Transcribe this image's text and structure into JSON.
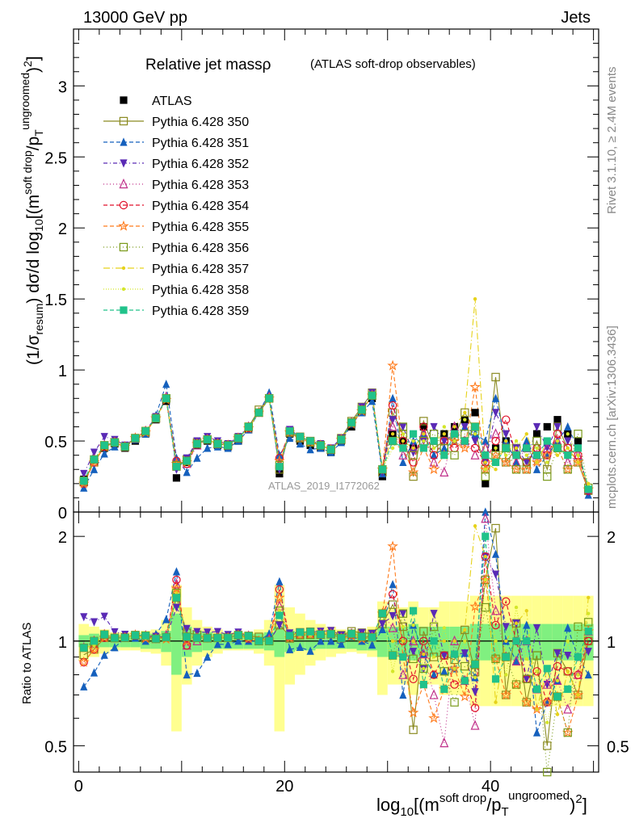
{
  "header": {
    "left": "13000 GeV pp",
    "right": "Jets"
  },
  "side_labels": {
    "version": "Rivet 3.1.10, ≥ 2.4M events",
    "source": "mcplots.cern.ch [arXiv:1306.3436]"
  },
  "watermark": "ATLAS_2019_I1772062",
  "colors": {
    "ATLAS": "#000000",
    "350": "#8b8b22",
    "351": "#1560bd",
    "352": "#5a2ab5",
    "353": "#c0308a",
    "354": "#e0102a",
    "355": "#ff7a1a",
    "356": "#7a9a1a",
    "357": "#e6d21a",
    "358": "#d4e62a",
    "359": "#20c28a",
    "band_inner": "#80f080",
    "band_outer": "#ffff90"
  },
  "chart_data": [
    {
      "type": "line",
      "title": "Relative jet massρ",
      "subtitle": "(ATLAS soft-drop observables)",
      "ylabel": "(1/σresum) dσ/d log10[(m soft drop/pT ungroomed)2]",
      "ylim": [
        0,
        3.4
      ],
      "yticks": [
        "0",
        "0.5",
        "1",
        "1.5",
        "2",
        "2.5",
        "3"
      ],
      "x": [
        0.5,
        1.5,
        2.5,
        3.5,
        4.5,
        5.5,
        6.5,
        7.5,
        8.5,
        9.5,
        10.5,
        11.5,
        12.5,
        13.5,
        14.5,
        15.5,
        16.5,
        17.5,
        18.5,
        19.5,
        20.5,
        21.5,
        22.5,
        23.5,
        24.5,
        25.5,
        26.5,
        27.5,
        28.5,
        29.5,
        30.5,
        31.5,
        32.5,
        33.5,
        34.5,
        35.5,
        36.5,
        37.5,
        38.5,
        39.5,
        40.5,
        41.5,
        42.5,
        43.5,
        44.5,
        45.5,
        46.5,
        47.5,
        48.5,
        49.5
      ],
      "legend": [
        "ATLAS",
        "Pythia 6.428 350",
        "Pythia 6.428 351",
        "Pythia 6.428 352",
        "Pythia 6.428 353",
        "Pythia 6.428 354",
        "Pythia 6.428 355",
        "Pythia 6.428 356",
        "Pythia 6.428 357",
        "Pythia 6.428 358",
        "Pythia 6.428 359"
      ],
      "legend_position": "top-left",
      "series": [
        {
          "name": "ATLAS",
          "values": [
            0.23,
            0.37,
            0.45,
            0.48,
            0.45,
            0.5,
            0.55,
            0.65,
            0.78,
            0.24,
            0.35,
            0.47,
            0.5,
            0.47,
            0.46,
            0.5,
            0.58,
            0.7,
            0.8,
            0.27,
            0.55,
            0.5,
            0.47,
            0.45,
            0.42,
            0.5,
            0.6,
            0.7,
            0.8,
            0.25,
            0.55,
            0.5,
            0.45,
            0.6,
            0.5,
            0.55,
            0.6,
            0.65,
            0.7,
            0.2,
            0.45,
            0.5,
            0.4,
            0.45,
            0.55,
            0.6,
            0.65,
            0.55,
            0.5,
            0.15
          ]
        },
        {
          "name": "Pythia 6.428 350",
          "values": [
            0.21,
            0.35,
            0.46,
            0.49,
            0.46,
            0.52,
            0.56,
            0.66,
            0.8,
            0.32,
            0.37,
            0.49,
            0.51,
            0.48,
            0.47,
            0.52,
            0.6,
            0.72,
            0.8,
            0.3,
            0.57,
            0.53,
            0.5,
            0.47,
            0.44,
            0.52,
            0.64,
            0.74,
            0.84,
            0.28,
            0.7,
            0.55,
            0.25,
            0.64,
            0.45,
            0.5,
            0.53,
            0.7,
            0.57,
            0.3,
            0.95,
            0.35,
            0.45,
            0.3,
            0.5,
            0.3,
            0.6,
            0.45,
            0.35,
            0.15
          ]
        },
        {
          "name": "Pythia 6.428 351",
          "values": [
            0.17,
            0.3,
            0.41,
            0.46,
            0.46,
            0.51,
            0.55,
            0.68,
            0.9,
            0.38,
            0.28,
            0.38,
            0.45,
            0.46,
            0.45,
            0.5,
            0.58,
            0.7,
            0.84,
            0.4,
            0.52,
            0.48,
            0.44,
            0.45,
            0.42,
            0.49,
            0.62,
            0.7,
            0.78,
            0.27,
            0.8,
            0.35,
            0.5,
            0.55,
            0.4,
            0.45,
            0.5,
            0.6,
            0.55,
            0.5,
            0.8,
            0.5,
            0.35,
            0.5,
            0.3,
            0.4,
            0.5,
            0.6,
            0.45,
            0.12
          ]
        },
        {
          "name": "Pythia 6.428 352",
          "values": [
            0.27,
            0.42,
            0.53,
            0.51,
            0.47,
            0.52,
            0.57,
            0.67,
            0.8,
            0.3,
            0.38,
            0.5,
            0.53,
            0.5,
            0.48,
            0.53,
            0.6,
            0.7,
            0.8,
            0.3,
            0.58,
            0.53,
            0.5,
            0.48,
            0.45,
            0.52,
            0.63,
            0.74,
            0.84,
            0.28,
            0.65,
            0.6,
            0.42,
            0.5,
            0.6,
            0.5,
            0.55,
            0.6,
            0.5,
            0.35,
            0.7,
            0.55,
            0.45,
            0.35,
            0.6,
            0.45,
            0.6,
            0.5,
            0.45,
            0.14
          ]
        },
        {
          "name": "Pythia 6.428 353",
          "values": [
            0.22,
            0.37,
            0.47,
            0.49,
            0.46,
            0.52,
            0.57,
            0.66,
            0.81,
            0.35,
            0.34,
            0.47,
            0.51,
            0.48,
            0.47,
            0.52,
            0.6,
            0.7,
            0.81,
            0.34,
            0.56,
            0.52,
            0.49,
            0.47,
            0.44,
            0.51,
            0.63,
            0.72,
            0.82,
            0.3,
            0.6,
            0.4,
            0.45,
            0.55,
            0.35,
            0.28,
            0.6,
            0.5,
            0.4,
            0.45,
            0.55,
            0.45,
            0.35,
            0.45,
            0.4,
            0.45,
            0.5,
            0.35,
            0.4,
            0.16
          ]
        },
        {
          "name": "Pythia 6.428 354",
          "values": [
            0.2,
            0.35,
            0.46,
            0.49,
            0.46,
            0.52,
            0.57,
            0.66,
            0.8,
            0.36,
            0.34,
            0.48,
            0.51,
            0.48,
            0.47,
            0.52,
            0.59,
            0.7,
            0.8,
            0.38,
            0.56,
            0.52,
            0.49,
            0.47,
            0.44,
            0.51,
            0.63,
            0.72,
            0.82,
            0.3,
            0.75,
            0.5,
            0.35,
            0.6,
            0.4,
            0.5,
            0.45,
            0.5,
            0.45,
            0.35,
            0.5,
            0.65,
            0.4,
            0.35,
            0.45,
            0.4,
            0.55,
            0.45,
            0.4,
            0.15
          ]
        },
        {
          "name": "Pythia 6.428 355",
          "values": [
            0.2,
            0.35,
            0.46,
            0.49,
            0.46,
            0.52,
            0.56,
            0.66,
            0.79,
            0.34,
            0.35,
            0.48,
            0.51,
            0.48,
            0.47,
            0.52,
            0.59,
            0.7,
            0.8,
            0.36,
            0.56,
            0.52,
            0.49,
            0.47,
            0.44,
            0.51,
            0.62,
            0.71,
            0.82,
            0.3,
            1.03,
            0.45,
            0.28,
            0.45,
            0.3,
            0.4,
            0.5,
            0.45,
            0.88,
            0.3,
            0.4,
            0.35,
            0.3,
            0.3,
            0.35,
            0.4,
            0.45,
            0.3,
            0.35,
            0.16
          ]
        },
        {
          "name": "Pythia 6.428 356",
          "values": [
            0.22,
            0.37,
            0.47,
            0.49,
            0.46,
            0.52,
            0.57,
            0.66,
            0.8,
            0.33,
            0.36,
            0.48,
            0.51,
            0.48,
            0.47,
            0.52,
            0.6,
            0.7,
            0.8,
            0.33,
            0.56,
            0.52,
            0.49,
            0.47,
            0.44,
            0.51,
            0.63,
            0.72,
            0.82,
            0.3,
            0.5,
            0.6,
            0.4,
            0.5,
            0.55,
            0.45,
            0.4,
            0.55,
            0.6,
            0.25,
            0.4,
            0.45,
            0.3,
            0.35,
            0.5,
            0.25,
            0.45,
            0.3,
            0.55,
            0.17
          ]
        },
        {
          "name": "Pythia 6.428 357",
          "values": [
            0.22,
            0.36,
            0.47,
            0.49,
            0.46,
            0.52,
            0.56,
            0.66,
            0.8,
            0.33,
            0.36,
            0.48,
            0.51,
            0.48,
            0.47,
            0.52,
            0.59,
            0.7,
            0.8,
            0.33,
            0.57,
            0.53,
            0.49,
            0.47,
            0.44,
            0.51,
            0.63,
            0.72,
            0.82,
            0.3,
            0.55,
            0.5,
            0.45,
            0.55,
            0.5,
            0.55,
            0.6,
            0.7,
            1.5,
            0.35,
            0.3,
            0.5,
            0.45,
            0.55,
            0.35,
            0.5,
            0.4,
            0.45,
            0.35,
            0.2
          ]
        },
        {
          "name": "Pythia 6.428 358",
          "values": [
            0.22,
            0.36,
            0.47,
            0.49,
            0.46,
            0.52,
            0.56,
            0.66,
            0.8,
            0.32,
            0.36,
            0.48,
            0.51,
            0.48,
            0.47,
            0.52,
            0.59,
            0.7,
            0.8,
            0.33,
            0.57,
            0.52,
            0.49,
            0.47,
            0.44,
            0.51,
            0.63,
            0.72,
            0.82,
            0.3,
            0.45,
            0.55,
            0.5,
            0.5,
            0.45,
            0.6,
            0.5,
            0.65,
            0.55,
            0.3,
            0.45,
            0.4,
            0.5,
            0.4,
            0.45,
            0.35,
            0.5,
            0.55,
            0.4,
            0.18
          ]
        },
        {
          "name": "Pythia 6.428 359",
          "values": [
            0.22,
            0.37,
            0.47,
            0.49,
            0.46,
            0.52,
            0.57,
            0.66,
            0.8,
            0.32,
            0.36,
            0.48,
            0.51,
            0.48,
            0.47,
            0.52,
            0.6,
            0.7,
            0.8,
            0.32,
            0.57,
            0.53,
            0.5,
            0.47,
            0.44,
            0.51,
            0.63,
            0.72,
            0.82,
            0.3,
            0.5,
            0.45,
            0.55,
            0.45,
            0.5,
            0.4,
            0.55,
            0.5,
            0.6,
            0.4,
            0.35,
            0.45,
            0.4,
            0.45,
            0.4,
            0.5,
            0.45,
            0.4,
            0.45,
            0.16
          ]
        }
      ]
    },
    {
      "type": "line",
      "ylabel": "Ratio to ATLAS",
      "xlabel": "log10[(m soft drop/pT ungroomed)2]",
      "xlim": [
        -0.5,
        50.5
      ],
      "xticks": [
        "0",
        "20",
        "40"
      ],
      "yscale": "log",
      "ylim": [
        0.42,
        2.35
      ],
      "yticks": [
        "0.5",
        "1",
        "2"
      ],
      "reference_line": 1,
      "note": "ratios equal each Pythia series divided by the ATLAS series at the same x",
      "band_inner_halfwidth": [
        0.04,
        0.05,
        0.04,
        0.04,
        0.04,
        0.04,
        0.05,
        0.05,
        0.07,
        0.2,
        0.1,
        0.07,
        0.06,
        0.05,
        0.05,
        0.05,
        0.05,
        0.05,
        0.06,
        0.1,
        0.07,
        0.06,
        0.06,
        0.05,
        0.05,
        0.05,
        0.05,
        0.06,
        0.06,
        0.1,
        0.1,
        0.1,
        0.12,
        0.1,
        0.1,
        0.1,
        0.1,
        0.1,
        0.12,
        0.12,
        0.12,
        0.12,
        0.12,
        0.12,
        0.12,
        0.12,
        0.12,
        0.12,
        0.12,
        0.12
      ],
      "band_outer_halfwidth": [
        0.12,
        0.1,
        0.08,
        0.06,
        0.06,
        0.06,
        0.07,
        0.08,
        0.15,
        0.45,
        0.25,
        0.15,
        0.1,
        0.08,
        0.06,
        0.06,
        0.06,
        0.08,
        0.15,
        0.45,
        0.25,
        0.2,
        0.15,
        0.12,
        0.1,
        0.08,
        0.07,
        0.08,
        0.1,
        0.3,
        0.25,
        0.25,
        0.3,
        0.25,
        0.25,
        0.3,
        0.3,
        0.3,
        0.35,
        0.35,
        0.35,
        0.35,
        0.35,
        0.35,
        0.35,
        0.35,
        0.35,
        0.35,
        0.35,
        0.35
      ]
    }
  ]
}
